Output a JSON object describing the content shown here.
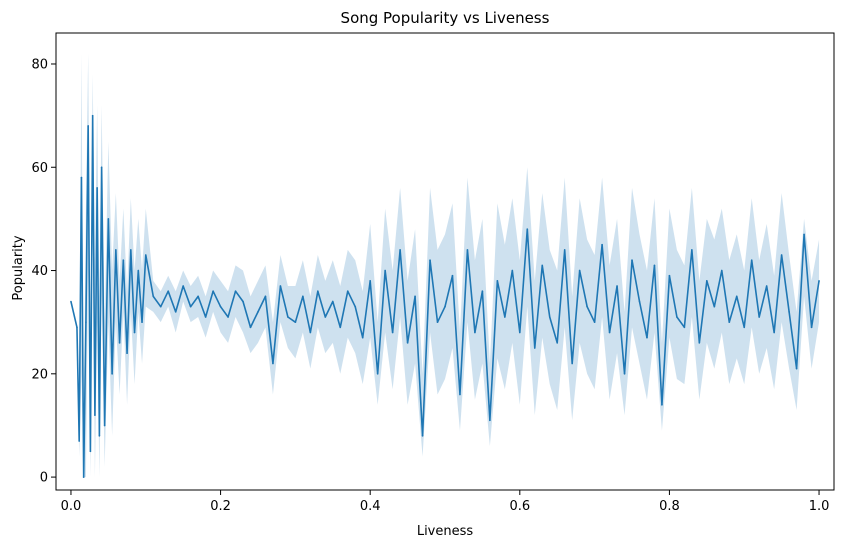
{
  "chart_data": {
    "type": "line",
    "title": "Song Popularity vs Liveness",
    "xlabel": "Liveness",
    "ylabel": "Popularity",
    "xlim": [
      -0.02,
      1.02
    ],
    "ylim": [
      -2.5,
      86.0
    ],
    "x_ticks": [
      0.0,
      0.2,
      0.4,
      0.6,
      0.8,
      1.0
    ],
    "x_tick_labels": [
      "0.0",
      "0.2",
      "0.4",
      "0.6",
      "0.8",
      "1.0"
    ],
    "y_ticks": [
      0,
      20,
      40,
      60,
      80
    ],
    "y_tick_labels": [
      "0",
      "20",
      "40",
      "60",
      "80"
    ],
    "grid": false,
    "legend": "none",
    "colors": {
      "line": "#1f77b4",
      "band": "#1f77b4"
    },
    "series": [
      {
        "x": [
          0.0,
          0.008,
          0.011,
          0.014,
          0.017,
          0.02,
          0.023,
          0.026,
          0.029,
          0.032,
          0.035,
          0.038,
          0.041,
          0.045,
          0.05,
          0.055,
          0.06,
          0.065,
          0.07,
          0.075,
          0.08,
          0.085,
          0.09,
          0.095,
          0.1,
          0.11,
          0.12,
          0.13,
          0.14,
          0.15,
          0.16,
          0.17,
          0.18,
          0.19,
          0.2,
          0.21,
          0.22,
          0.23,
          0.24,
          0.25,
          0.26,
          0.27,
          0.28,
          0.29,
          0.3,
          0.31,
          0.32,
          0.33,
          0.34,
          0.35,
          0.36,
          0.37,
          0.38,
          0.39,
          0.4,
          0.41,
          0.42,
          0.43,
          0.44,
          0.45,
          0.46,
          0.47,
          0.48,
          0.49,
          0.5,
          0.51,
          0.52,
          0.53,
          0.54,
          0.55,
          0.56,
          0.57,
          0.58,
          0.59,
          0.6,
          0.61,
          0.62,
          0.63,
          0.64,
          0.65,
          0.66,
          0.67,
          0.68,
          0.69,
          0.7,
          0.71,
          0.72,
          0.73,
          0.74,
          0.75,
          0.76,
          0.77,
          0.78,
          0.79,
          0.8,
          0.81,
          0.82,
          0.83,
          0.84,
          0.85,
          0.86,
          0.87,
          0.88,
          0.89,
          0.9,
          0.91,
          0.92,
          0.93,
          0.94,
          0.95,
          0.96,
          0.97,
          0.98,
          0.99,
          1.0
        ],
        "y": [
          34,
          29,
          7,
          58,
          0,
          30,
          68,
          5,
          70,
          12,
          56,
          8,
          60,
          10,
          50,
          20,
          44,
          26,
          42,
          24,
          44,
          28,
          40,
          30,
          43,
          35,
          33,
          36,
          32,
          37,
          33,
          35,
          31,
          36,
          33,
          31,
          36,
          34,
          29,
          32,
          35,
          22,
          37,
          31,
          30,
          35,
          28,
          36,
          31,
          34,
          29,
          36,
          33,
          27,
          38,
          20,
          40,
          28,
          44,
          26,
          35,
          8,
          42,
          30,
          33,
          39,
          16,
          44,
          28,
          36,
          11,
          38,
          31,
          40,
          28,
          48,
          25,
          41,
          31,
          26,
          44,
          22,
          40,
          33,
          30,
          45,
          28,
          37,
          20,
          42,
          34,
          27,
          41,
          14,
          39,
          31,
          29,
          44,
          26,
          38,
          33,
          40,
          30,
          35,
          29,
          42,
          31,
          37,
          28,
          43,
          32,
          21,
          47,
          29,
          38
        ],
        "band_low": [
          34,
          29,
          4,
          20,
          0,
          0,
          40,
          0,
          50,
          0,
          30,
          0,
          35,
          2,
          30,
          8,
          30,
          16,
          32,
          14,
          32,
          18,
          32,
          22,
          33,
          32,
          30,
          33,
          28,
          34,
          30,
          31,
          27,
          32,
          28,
          26,
          31,
          28,
          24,
          26,
          29,
          16,
          30,
          25,
          23,
          28,
          21,
          29,
          24,
          26,
          20,
          27,
          24,
          18,
          27,
          14,
          28,
          17,
          31,
          14,
          22,
          4,
          28,
          16,
          19,
          25,
          9,
          30,
          15,
          22,
          6,
          23,
          17,
          26,
          14,
          33,
          12,
          27,
          18,
          13,
          29,
          11,
          26,
          20,
          17,
          31,
          15,
          24,
          12,
          29,
          22,
          15,
          28,
          9,
          27,
          19,
          18,
          31,
          15,
          26,
          21,
          28,
          18,
          23,
          18,
          29,
          20,
          25,
          17,
          30,
          21,
          13,
          35,
          21,
          30
        ],
        "band_high": [
          34,
          29,
          12,
          82,
          10,
          52,
          82,
          30,
          78,
          42,
          72,
          35,
          72,
          30,
          65,
          40,
          55,
          38,
          52,
          36,
          54,
          40,
          50,
          40,
          52,
          38,
          36,
          39,
          36,
          40,
          37,
          39,
          35,
          40,
          38,
          36,
          41,
          40,
          35,
          38,
          41,
          30,
          43,
          37,
          37,
          42,
          35,
          43,
          38,
          42,
          37,
          44,
          42,
          36,
          49,
          30,
          52,
          40,
          56,
          38,
          48,
          20,
          56,
          44,
          47,
          53,
          28,
          58,
          42,
          50,
          22,
          53,
          45,
          54,
          42,
          60,
          38,
          55,
          44,
          40,
          58,
          35,
          54,
          46,
          43,
          58,
          41,
          50,
          32,
          56,
          47,
          40,
          54,
          26,
          52,
          44,
          41,
          56,
          38,
          50,
          46,
          52,
          42,
          47,
          40,
          54,
          42,
          49,
          39,
          55,
          43,
          32,
          50,
          38,
          46
        ]
      }
    ]
  }
}
